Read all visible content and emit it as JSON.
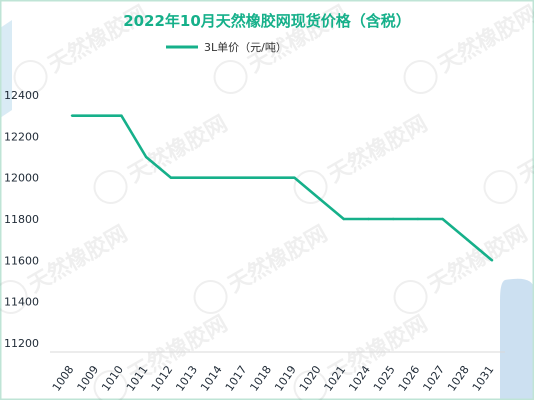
{
  "chart_data": {
    "type": "line",
    "title": "2022年10月天然橡胶网现货价格（含税）",
    "legend_position": "top",
    "series": [
      {
        "name": "3L单价（元/吨）",
        "color": "#16b08a",
        "values": [
          12300,
          12300,
          12300,
          12100,
          12000,
          12000,
          12000,
          12000,
          12000,
          12000,
          11900,
          11800,
          11800,
          11800,
          11800,
          11800,
          11700,
          11600
        ]
      }
    ],
    "categories": [
      "1008",
      "1009",
      "1010",
      "1011",
      "1012",
      "1013",
      "1014",
      "1017",
      "1018",
      "1019",
      "1020",
      "1021",
      "1024",
      "1025",
      "1026",
      "1027",
      "1028",
      "1031"
    ],
    "y_ticks": [
      11200,
      11400,
      11600,
      11800,
      12000,
      12200,
      12400
    ],
    "ylim": [
      11200,
      12500
    ],
    "grid": false,
    "watermark": "天然橡胶网"
  }
}
